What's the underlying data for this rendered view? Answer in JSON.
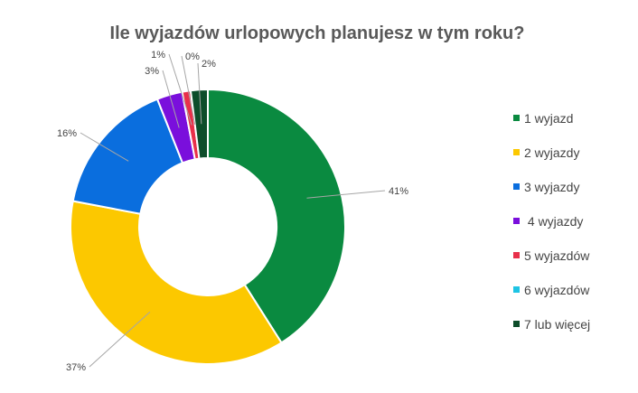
{
  "chart_data": {
    "type": "pie",
    "title": "Ile wyjazdów urlopowych planujesz w tym roku?",
    "categories": [
      "1 wyjazd",
      "2 wyjazdy",
      "3 wyjazdy",
      " 4 wyjazdy",
      "5 wyjazdów",
      "6 wyjazdów",
      "7 lub więcej"
    ],
    "values": [
      41,
      37,
      16,
      3,
      1,
      0,
      2
    ],
    "data_labels": [
      "41%",
      "37%",
      "16%",
      "3%",
      "1%",
      "0%",
      "2%"
    ],
    "colors": [
      "#0a8a40",
      "#fcc800",
      "#0a6ede",
      "#7a0fdc",
      "#e8304a",
      "#1ec4e4",
      "#0d4d2a"
    ],
    "donut": true,
    "legend_position": "right"
  }
}
